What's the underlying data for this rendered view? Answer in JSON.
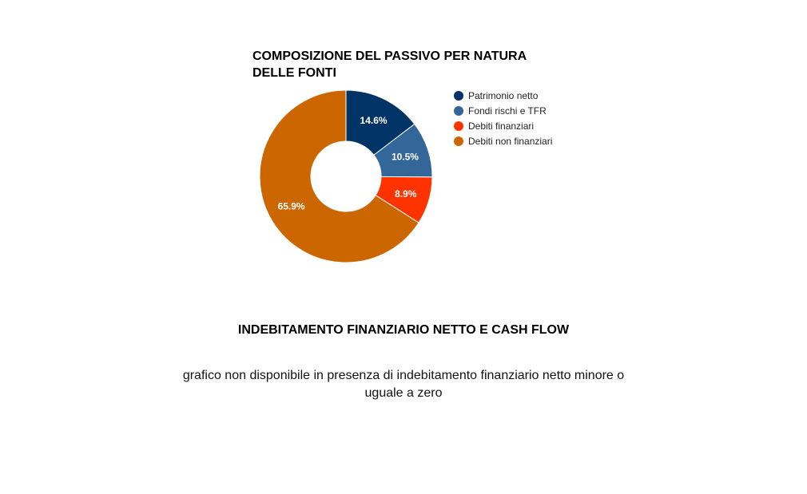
{
  "chart_data": {
    "type": "pie",
    "subtype": "donut",
    "title": "COMPOSIZIONE DEL PASSIVO PER NATURA DELLE FONTI",
    "categories": [
      "Patrimonio netto",
      "Fondi rischi e TFR",
      "Debiti finanziari",
      "Debiti non finanziari"
    ],
    "values": [
      14.6,
      10.5,
      8.9,
      65.9
    ],
    "labels": [
      "14.6%",
      "10.5%",
      "8.9%",
      "65.9%"
    ],
    "colors": [
      "#003366",
      "#336699",
      "#ff3300",
      "#cc6600"
    ],
    "legend_position": "right"
  },
  "cashflow": {
    "title": "INDEBITAMENTO FINANZIARIO NETTO E CASH FLOW",
    "message": "grafico non disponibile in presenza di indebitamento finanziario netto minore o uguale a zero"
  }
}
